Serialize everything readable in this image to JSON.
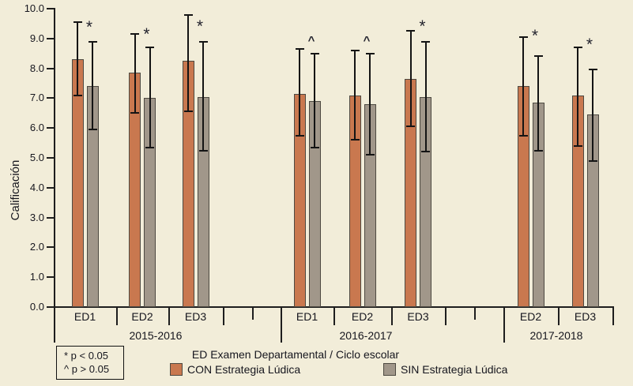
{
  "chart_data": {
    "type": "bar",
    "title": "",
    "ylabel": "Calificación",
    "xlabel": "ED Examen Departamental / Ciclo escolar",
    "ylim": [
      0,
      10
    ],
    "ytick_step": 1.0,
    "yticks": [
      "0.0",
      "1.0",
      "2.0",
      "3.0",
      "4.0",
      "5.0",
      "6.0",
      "7.0",
      "8.0",
      "9.0",
      "10.0"
    ],
    "grid": false,
    "legend_position": "bottom",
    "series": [
      {
        "key": "con",
        "name": "CON Estrategia Lúdica",
        "color": "#c9784f"
      },
      {
        "key": "sin",
        "name": "SIN Estrategia Lúdica",
        "color": "#a1978a"
      }
    ],
    "annotations": [
      "* p < 0.05",
      "^ p > 0.05"
    ],
    "significance_markers": {
      "star": "*",
      "caret": "^"
    },
    "colors": {
      "background": "#f2edd9",
      "bar_border": "#4d4941",
      "error_bar": "#141414",
      "text": "#16161e"
    },
    "groups": [
      {
        "year": "2015-2016",
        "exams": [
          {
            "label": "ED1",
            "con": {
              "value": 8.3,
              "err_low": 7.1,
              "err_high": 9.55
            },
            "sin": {
              "value": 7.4,
              "err_low": 5.95,
              "err_high": 8.9
            },
            "marker": "*"
          },
          {
            "label": "ED2",
            "con": {
              "value": 7.85,
              "err_low": 6.5,
              "err_high": 9.15
            },
            "sin": {
              "value": 7.0,
              "err_low": 5.35,
              "err_high": 8.7
            },
            "marker": "*"
          },
          {
            "label": "ED3",
            "con": {
              "value": 8.25,
              "err_low": 6.55,
              "err_high": 9.8
            },
            "sin": {
              "value": 7.05,
              "err_low": 5.25,
              "err_high": 8.9
            },
            "marker": "*"
          }
        ]
      },
      {
        "year": "2016-2017",
        "exams": [
          {
            "label": "ED1",
            "con": {
              "value": 7.15,
              "err_low": 5.75,
              "err_high": 8.65
            },
            "sin": {
              "value": 6.9,
              "err_low": 5.35,
              "err_high": 8.5
            },
            "marker": "^"
          },
          {
            "label": "ED2",
            "con": {
              "value": 7.1,
              "err_low": 5.6,
              "err_high": 8.6
            },
            "sin": {
              "value": 6.8,
              "err_low": 5.1,
              "err_high": 8.5
            },
            "marker": "^"
          },
          {
            "label": "ED3",
            "con": {
              "value": 7.65,
              "err_low": 6.05,
              "err_high": 9.25
            },
            "sin": {
              "value": 7.05,
              "err_low": 5.2,
              "err_high": 8.9
            },
            "marker": "*"
          }
        ]
      },
      {
        "year": "2017-2018",
        "exams": [
          {
            "label": "ED2",
            "con": {
              "value": 7.4,
              "err_low": 5.75,
              "err_high": 9.05
            },
            "sin": {
              "value": 6.85,
              "err_low": 5.25,
              "err_high": 8.4
            },
            "marker": "*"
          },
          {
            "label": "ED3",
            "con": {
              "value": 7.1,
              "err_low": 5.4,
              "err_high": 8.7
            },
            "sin": {
              "value": 6.45,
              "err_low": 4.9,
              "err_high": 7.95
            },
            "marker": "*"
          }
        ]
      }
    ]
  }
}
